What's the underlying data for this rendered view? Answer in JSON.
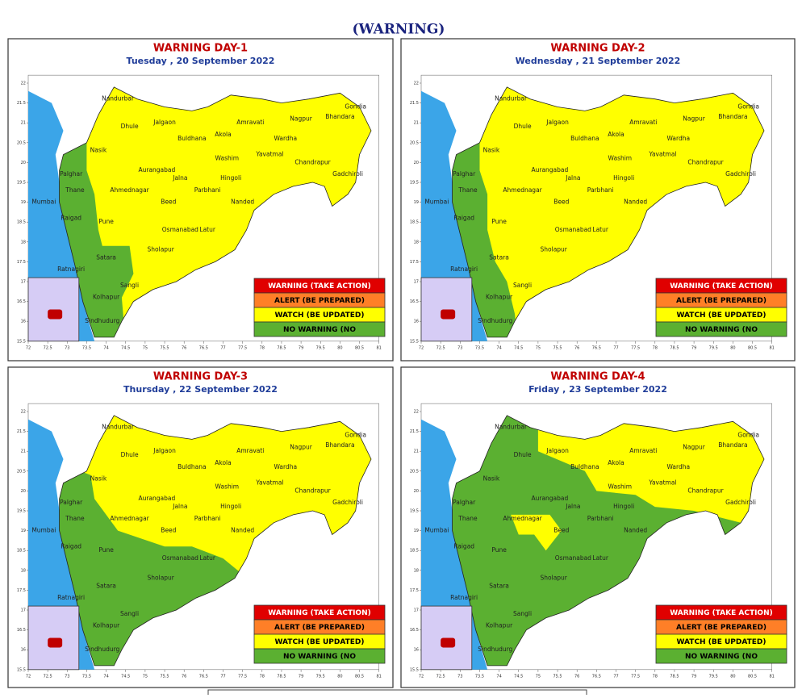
{
  "header": {
    "title": "(WARNING)"
  },
  "panels": [
    {
      "title": "WARNING  DAY-1",
      "date": "Tuesday ,  20 September 2022"
    },
    {
      "title": "WARNING  DAY-2",
      "date": "Wednesday ,  21 September 2022"
    },
    {
      "title": "WARNING  DAY-3",
      "date": "Thursday ,  22 September 2022"
    },
    {
      "title": "WARNING  DAY-4",
      "date": "Friday ,  23 September 2022"
    }
  ],
  "legend": [
    "WARNING (TAKE ACTION)",
    "ALERT (BE PREPARED)",
    "WATCH (BE UPDATED)",
    "NO WARNING (NO"
  ],
  "districts": [
    "Nandurbar",
    "Dhule",
    "Jalgaon",
    "Nasik",
    "Palghar",
    "Thane",
    "Mumbai",
    "Raigad",
    "Pune",
    "Ratnagiri",
    "Satara",
    "Sangli",
    "Kolhapur",
    "Sindhudurg",
    "Ahmednagar",
    "Aurangabad",
    "Jalna",
    "Beed",
    "Buldhana",
    "Akola",
    "Washim",
    "Hingoli",
    "Parbhani",
    "Nanded",
    "Latur",
    "Osmanabad",
    "Sholapur",
    "Amravati",
    "Wardha",
    "Nagpur",
    "Yavatmal",
    "Chandrapur",
    "Gadchiroli",
    "Gondia",
    "Bhandara"
  ],
  "lat_ticks": [
    22,
    21.5,
    21,
    20.5,
    20,
    19.5,
    19,
    18.5,
    18,
    17.5,
    17,
    16.5,
    16,
    15.5
  ],
  "lon_ticks": [
    72,
    72.5,
    73,
    73.5,
    74,
    74.5,
    75,
    75.5,
    76,
    76.5,
    77,
    77.5,
    78,
    78.5,
    79,
    79.5,
    80,
    80.5,
    81
  ]
}
